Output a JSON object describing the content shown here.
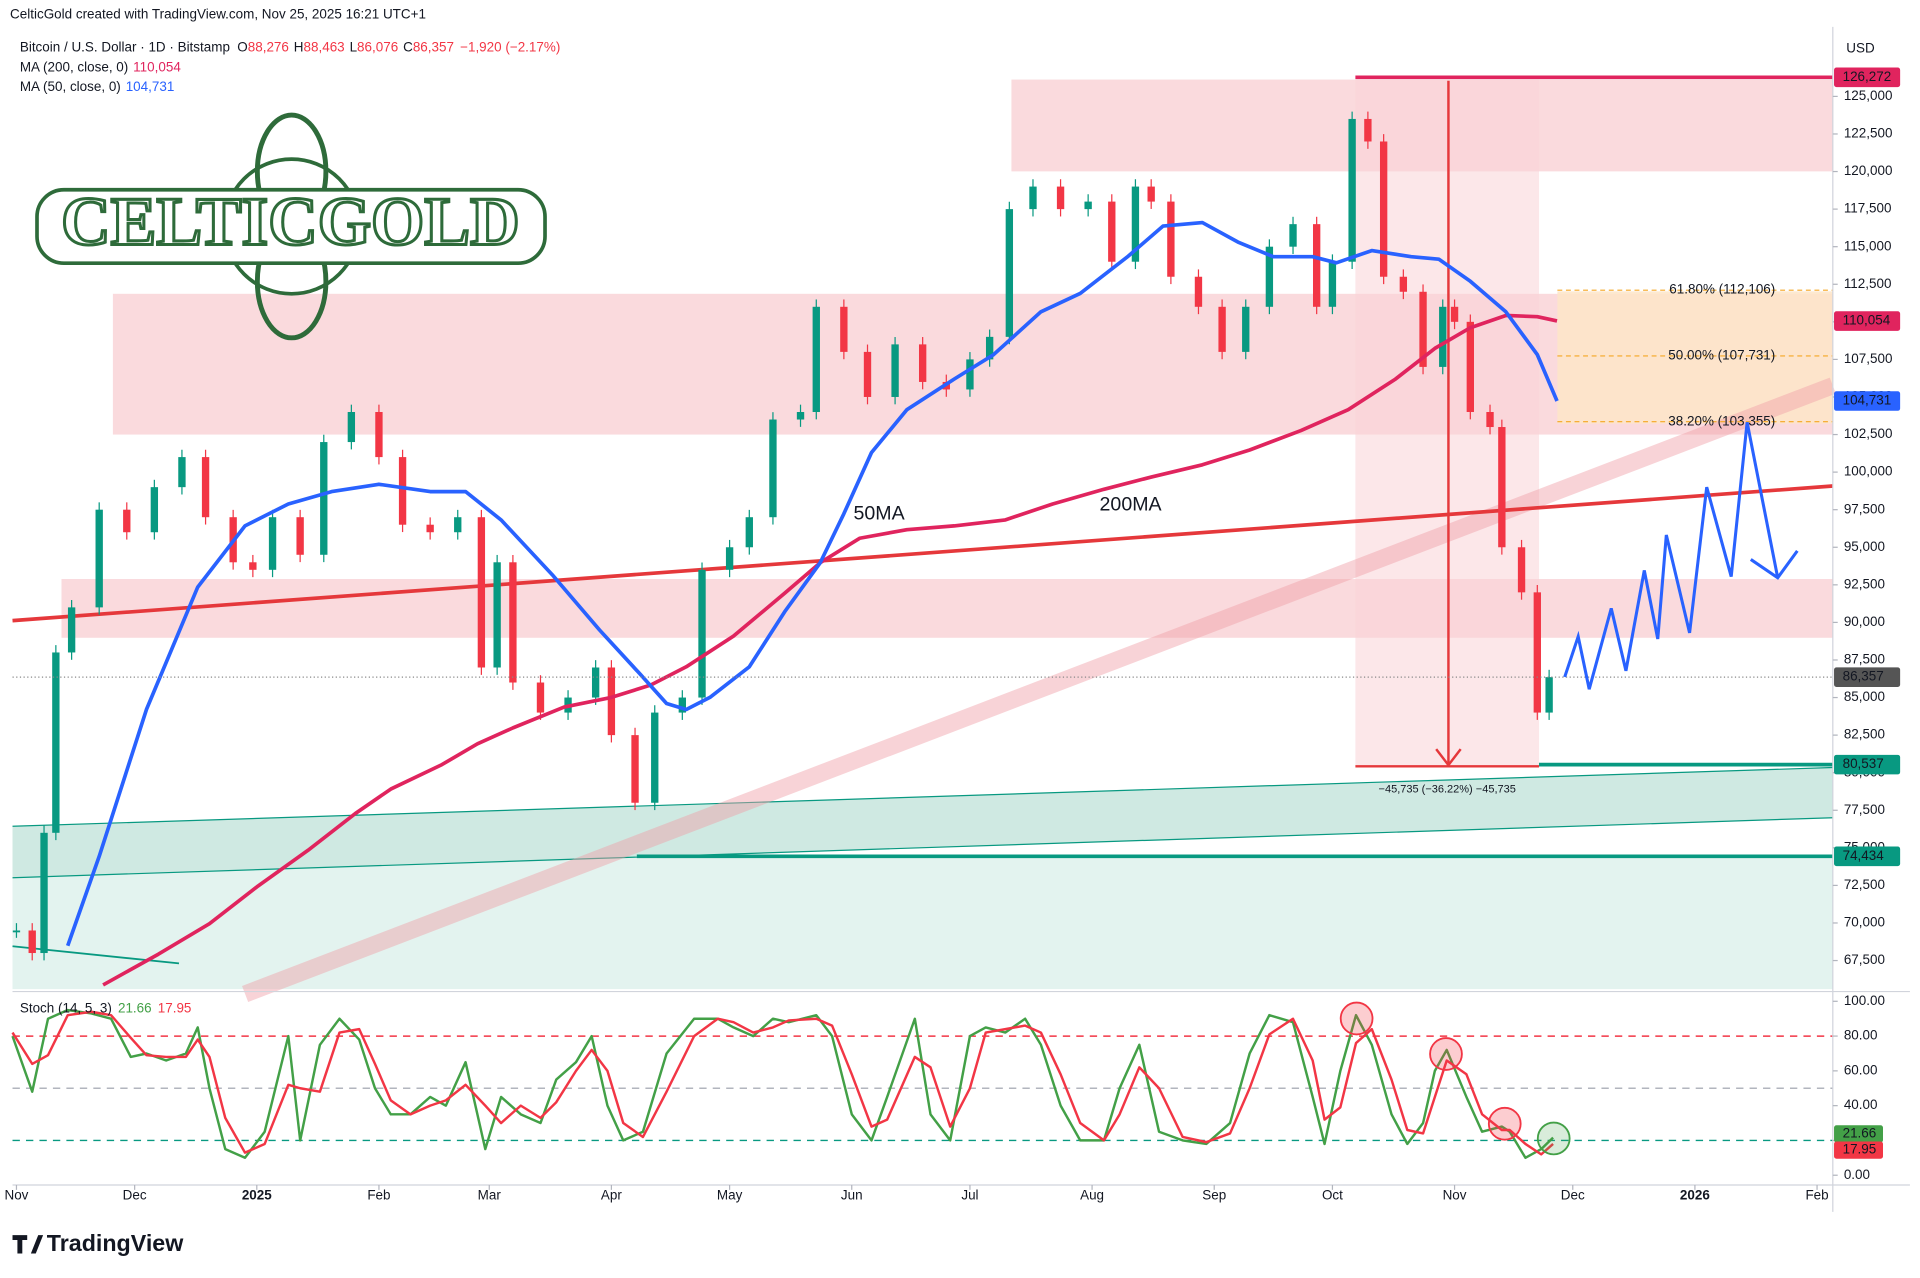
{
  "header": {
    "author": "CelticGold created with TradingView.com, Nov 25, 2025 16:21 UTC+1",
    "brand": "TradingView",
    "logo": "CELTICGOLD"
  },
  "chart_data": [
    {
      "type": "candlestick",
      "currency": "USD",
      "symbol": "Bitcoin / U.S. Dollar · 1D · Bitstamp",
      "ohlc": [
        {
          "key": "O",
          "value": "88,276"
        },
        {
          "key": "H",
          "value": "88,463"
        },
        {
          "key": "L",
          "value": "86,076"
        },
        {
          "key": "C",
          "value": "86,357"
        }
      ],
      "change": "−1,920 (−2.17%)",
      "xlim": [
        -1,
        461
      ],
      "ylim": [
        65600,
        130600
      ],
      "grid": false,
      "xticks": [
        {
          "value": 0,
          "label": "Nov"
        },
        {
          "value": 30,
          "label": "Dec"
        },
        {
          "value": 61,
          "label": "2025"
        },
        {
          "value": 92,
          "label": "Feb"
        },
        {
          "value": 120,
          "label": "Mar"
        },
        {
          "value": 151,
          "label": "Apr"
        },
        {
          "value": 181,
          "label": "May"
        },
        {
          "value": 212,
          "label": "Jun"
        },
        {
          "value": 242,
          "label": "Jul"
        },
        {
          "value": 273,
          "label": "Aug"
        },
        {
          "value": 304,
          "label": "Sep"
        },
        {
          "value": 334,
          "label": "Oct"
        },
        {
          "value": 365,
          "label": "Nov"
        },
        {
          "value": 395,
          "label": "Dec"
        },
        {
          "value": 426,
          "label": "2026"
        },
        {
          "value": 457,
          "label": "Feb"
        }
      ],
      "yticks": [
        {
          "value": 67500,
          "label": "67,500"
        },
        {
          "value": 70000,
          "label": "70,000"
        },
        {
          "value": 72500,
          "label": "72,500"
        },
        {
          "value": 75000,
          "label": "75,000"
        },
        {
          "value": 77500,
          "label": "77,500"
        },
        {
          "value": 80000,
          "label": "80,000"
        },
        {
          "value": 82500,
          "label": "82,500"
        },
        {
          "value": 85000,
          "label": "85,000"
        },
        {
          "value": 87500,
          "label": "87,500"
        },
        {
          "value": 90000,
          "label": "90,000"
        },
        {
          "value": 92500,
          "label": "92,500"
        },
        {
          "value": 95000,
          "label": "95,000"
        },
        {
          "value": 97500,
          "label": "97,500"
        },
        {
          "value": 100000,
          "label": "100,000"
        },
        {
          "value": 102500,
          "label": "102,500"
        },
        {
          "value": 105000,
          "label": "105,000"
        },
        {
          "value": 107500,
          "label": "107,500"
        },
        {
          "value": 110000,
          "label": "110,000"
        },
        {
          "value": 112500,
          "label": "112,500"
        },
        {
          "value": 115000,
          "label": "115,000"
        },
        {
          "value": 117500,
          "label": "117,500"
        },
        {
          "value": 120000,
          "label": "120,000"
        },
        {
          "value": 122500,
          "label": "122,500"
        },
        {
          "value": 125000,
          "label": "125,000"
        }
      ],
      "series": [
        {
          "name": "Bitcoin / U.S. Dollar · 1D · Bitstamp",
          "up_color": "#089981",
          "down_color": "#f23645",
          "x": [
            0,
            4,
            7,
            10,
            14,
            21,
            28,
            35,
            42,
            48,
            55,
            60,
            65,
            72,
            78,
            85,
            92,
            98,
            105,
            112,
            118,
            122,
            126,
            133,
            140,
            147,
            151,
            157,
            162,
            169,
            174,
            181,
            186,
            192,
            199,
            203,
            210,
            216,
            223,
            230,
            236,
            242,
            247,
            252,
            258,
            265,
            272,
            278,
            284,
            288,
            293,
            300,
            306,
            312,
            318,
            324,
            330,
            334,
            339,
            343,
            347,
            352,
            357,
            362,
            365,
            369,
            374,
            377,
            382,
            386,
            389
          ],
          "values": [
            69500,
            68000,
            76000,
            88000,
            91000,
            97500,
            96000,
            99000,
            101000,
            97000,
            94000,
            93500,
            97000,
            94500,
            102000,
            104000,
            101000,
            96500,
            96000,
            97000,
            87000,
            94000,
            86000,
            84000,
            85000,
            87000,
            82500,
            78000,
            84000,
            85000,
            93500,
            95000,
            97000,
            103500,
            104000,
            111000,
            108000,
            105000,
            108500,
            106000,
            105500,
            107500,
            109000,
            117500,
            119000,
            117500,
            118000,
            114000,
            119000,
            118000,
            113000,
            111000,
            108000,
            111000,
            115000,
            116500,
            111000,
            114000,
            123500,
            122000,
            113000,
            112000,
            107000,
            111000,
            110000,
            104000,
            103000,
            95000,
            92000,
            84000,
            86357
          ]
        },
        {
          "name": "MA (200, close, 0)",
          "color": "#e0245e",
          "last_label": "110,054",
          "x": [
            22,
            36,
            49,
            61,
            74,
            86,
            95,
            108,
            117,
            126,
            139,
            151,
            161,
            170,
            182,
            195,
            204,
            214,
            226,
            238,
            251,
            263,
            276,
            288,
            301,
            313,
            326,
            338,
            350,
            360,
            369,
            378,
            386,
            391
          ],
          "values": [
            65880,
            67920,
            69950,
            72400,
            74840,
            77280,
            78910,
            80540,
            81920,
            82980,
            84370,
            85010,
            85830,
            87050,
            89090,
            91940,
            93970,
            95600,
            96170,
            96420,
            96820,
            97880,
            98860,
            99670,
            100490,
            101470,
            102770,
            104150,
            106190,
            108230,
            109610,
            110420,
            110340,
            110054
          ]
        },
        {
          "name": "MA (50, close, 0)",
          "color": "#2962ff",
          "last_label": "104,731",
          "x": [
            13,
            21,
            33,
            46,
            58,
            69,
            80,
            92,
            105,
            114,
            123,
            136,
            148,
            158,
            165,
            170,
            176,
            186,
            195,
            204,
            210,
            217,
            226,
            238,
            248,
            260,
            270,
            282,
            291,
            301,
            310,
            319,
            329,
            335,
            344,
            354,
            361,
            369,
            378,
            386,
            391
          ],
          "values": [
            68485,
            74430,
            84200,
            92350,
            96420,
            97880,
            98700,
            99190,
            98700,
            98700,
            96820,
            93160,
            89490,
            86640,
            84600,
            84200,
            85010,
            87050,
            90710,
            93970,
            97230,
            101300,
            104150,
            106190,
            107820,
            110670,
            111890,
            114330,
            116370,
            116610,
            115310,
            114330,
            114330,
            113930,
            114740,
            114330,
            114170,
            112700,
            110670,
            107820,
            104731
          ]
        }
      ],
      "price_levels": [
        {
          "value": 126272,
          "label": "126,272",
          "color": "#e0245e"
        },
        {
          "value": 80537,
          "label": "80,537",
          "color": "#089981"
        },
        {
          "value": 74434,
          "label": "74,434",
          "color": "#089981"
        }
      ],
      "fib_levels": [
        {
          "value": 112106,
          "label": "61.80% (112,106)"
        },
        {
          "value": 107731,
          "label": "50.00% (107,731)"
        },
        {
          "value": 103355,
          "label": "38.20% (103,355)"
        }
      ],
      "annotations": {
        "ma50": "50MA",
        "ma200": "200MA",
        "drop": "−45,735 (−36.22%) −45,735"
      }
    },
    {
      "type": "line",
      "title": "Stoch (14, 5, 3)",
      "xlim": [
        -1,
        461
      ],
      "ylim": [
        -5.6,
        105.6
      ],
      "yticks": [
        {
          "value": 0,
          "label": "0.00"
        },
        {
          "value": 20,
          "label": "20.00"
        },
        {
          "value": 40,
          "label": "40.00"
        },
        {
          "value": 60,
          "label": "60.00"
        },
        {
          "value": 80,
          "label": "80.00"
        },
        {
          "value": 100,
          "label": "100.00"
        }
      ],
      "levels": [
        {
          "value": 80,
          "color": "#f23645"
        },
        {
          "value": 50,
          "color": "#b2b5be"
        },
        {
          "value": 20,
          "color": "#089981"
        }
      ],
      "x": [
        -1,
        4,
        8,
        13,
        19,
        24,
        29,
        33,
        38,
        43,
        46,
        49,
        53,
        58,
        63,
        69,
        72,
        77,
        82,
        87,
        91,
        95,
        100,
        105,
        109,
        114,
        119,
        123,
        128,
        133,
        137,
        142,
        146,
        150,
        154,
        159,
        165,
        172,
        178,
        182,
        187,
        192,
        196,
        203,
        207,
        212,
        217,
        221,
        228,
        232,
        237,
        242,
        246,
        251,
        256,
        260,
        265,
        270,
        276,
        280,
        285,
        290,
        296,
        302,
        308,
        313,
        318,
        324,
        329,
        332,
        336,
        340,
        344,
        349,
        353,
        357,
        360,
        363,
        368,
        372,
        377,
        379,
        383,
        387,
        390
      ],
      "series": [
        {
          "color": "#43a047",
          "last_label": "21.66",
          "values": [
            80,
            48,
            90,
            95,
            93,
            90,
            68,
            70,
            66,
            70,
            85,
            50,
            15,
            10,
            25,
            80,
            20,
            75,
            90,
            78,
            50,
            35,
            35,
            45,
            40,
            65,
            15,
            45,
            35,
            30,
            55,
            65,
            80,
            40,
            20,
            25,
            70,
            90,
            90,
            85,
            80,
            90,
            88,
            92,
            80,
            35,
            20,
            45,
            90,
            35,
            20,
            80,
            85,
            82,
            90,
            75,
            40,
            20,
            20,
            50,
            75,
            25,
            20,
            18,
            30,
            70,
            92,
            88,
            45,
            18,
            60,
            92,
            75,
            35,
            18,
            30,
            60,
            72,
            45,
            25,
            28,
            25,
            10,
            15,
            21.66
          ]
        },
        {
          "color": "#f23645",
          "last_label": "17.95",
          "values": [
            82,
            64,
            69,
            92,
            94,
            92,
            79,
            69,
            68,
            68,
            78,
            68,
            33,
            13,
            18,
            52,
            50,
            48,
            82,
            84,
            64,
            43,
            35,
            40,
            43,
            52,
            40,
            30,
            40,
            33,
            42,
            60,
            72,
            60,
            30,
            22,
            48,
            80,
            90,
            88,
            82,
            85,
            89,
            90,
            86,
            58,
            28,
            32,
            68,
            62,
            28,
            50,
            82,
            84,
            86,
            82,
            58,
            30,
            20,
            35,
            62,
            50,
            22,
            19,
            24,
            50,
            81,
            90,
            66,
            32,
            39,
            76,
            84,
            55,
            26,
            24,
            45,
            66,
            58,
            35,
            26,
            26,
            18,
            12,
            17.95
          ]
        }
      ]
    }
  ]
}
